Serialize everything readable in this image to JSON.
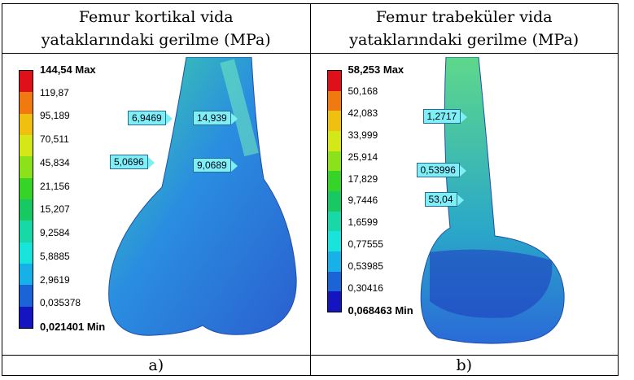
{
  "header": {
    "left_line1": "Femur kortikal vida",
    "left_line2": "yataklarındaki gerilme (MPa)",
    "right_line1": "Femur trabeküler vida",
    "right_line2": "yataklarındaki gerilme (MPa)"
  },
  "panel_a": {
    "legend": [
      "144,54 Max",
      "119,87",
      "95,189",
      "70,511",
      "45,834",
      "21,156",
      "15,207",
      "9,2584",
      "5,8885",
      "2,9619",
      "0,035378",
      "0,021401 Min"
    ],
    "probes": [
      "6,9469",
      "14,939",
      "5,0696",
      "9,0689"
    ],
    "caption": "a)"
  },
  "panel_b": {
    "legend": [
      "58,253 Max",
      "50,168",
      "42,083",
      "33,999",
      "25,914",
      "17,829",
      "9,7446",
      "1,6599",
      "0,77555",
      "0,53985",
      "0,30416",
      "0,068463 Min"
    ],
    "probes": [
      "1,2717",
      "0,53996",
      "53,04"
    ],
    "caption": "b)"
  },
  "colors": {
    "scale": [
      "#e0101a",
      "#f07a10",
      "#f0c010",
      "#d4e818",
      "#8ce21a",
      "#36d428",
      "#18c860",
      "#18d8a8",
      "#18e4dc",
      "#18b0e8",
      "#1a64d8",
      "#1414c0"
    ]
  }
}
